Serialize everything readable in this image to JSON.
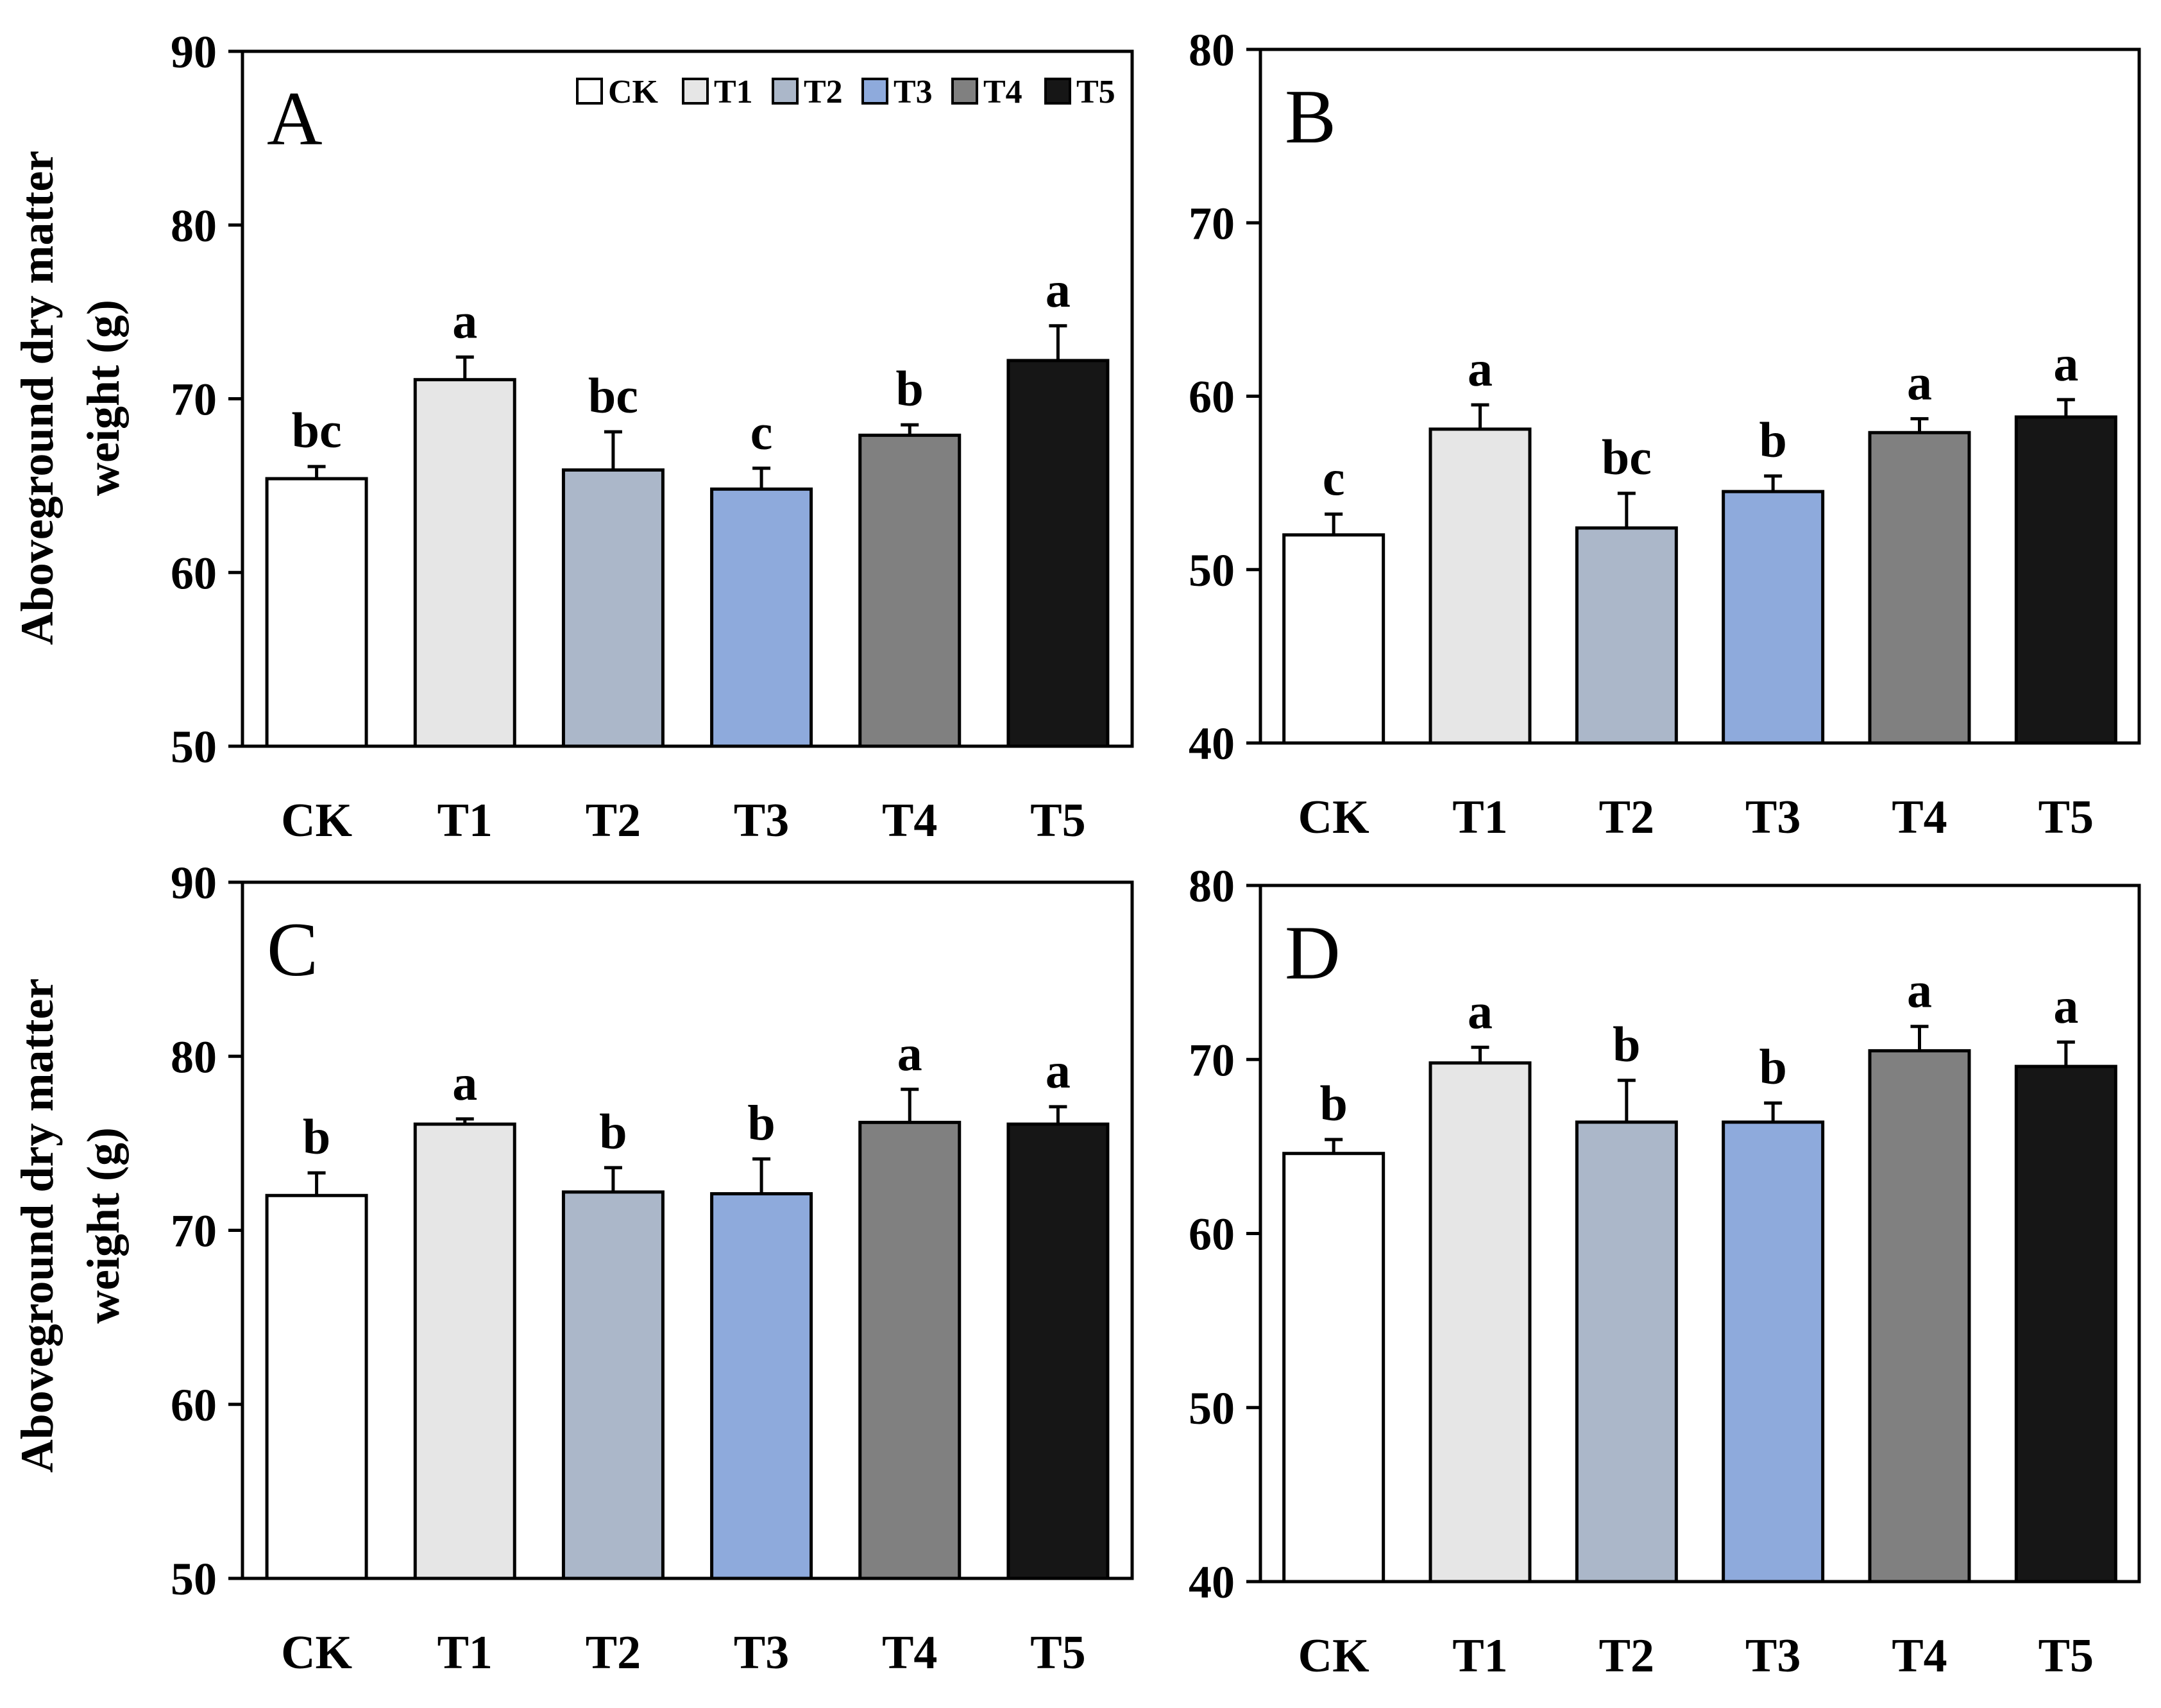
{
  "figure": {
    "ylabel_line1": "Aboveground dry matter",
    "ylabel_line2": "weight (g)"
  },
  "legend": {
    "entries": [
      "CK",
      "T1",
      "T2",
      "T3",
      "T4",
      "T5"
    ],
    "colors": [
      "#ffffff",
      "#e6e6e6",
      "#abb7c9",
      "#8eaadc",
      "#808080",
      "#161616"
    ]
  },
  "chart_data": [
    {
      "type": "bar",
      "panel": "A",
      "categories": [
        "CK",
        "T1",
        "T2",
        "T3",
        "T4",
        "T5"
      ],
      "values": [
        65.4,
        71.1,
        65.9,
        64.8,
        67.9,
        72.2
      ],
      "errors": [
        0.7,
        1.3,
        2.2,
        1.2,
        0.6,
        2.0
      ],
      "significance": [
        "bc",
        "a",
        "bc",
        "c",
        "b",
        "a"
      ],
      "ylim": [
        50,
        90
      ],
      "yticks": [
        50,
        60,
        70,
        80,
        90
      ],
      "ylabel": "Aboveground dry matter weight (g)",
      "legend": true
    },
    {
      "type": "bar",
      "panel": "B",
      "categories": [
        "CK",
        "T1",
        "T2",
        "T3",
        "T4",
        "T5"
      ],
      "values": [
        52.0,
        58.1,
        52.4,
        54.5,
        57.9,
        58.8
      ],
      "errors": [
        1.2,
        1.4,
        2.0,
        0.9,
        0.8,
        1.0
      ],
      "significance": [
        "c",
        "a",
        "bc",
        "b",
        "a",
        "a"
      ],
      "ylim": [
        40,
        80
      ],
      "yticks": [
        40,
        50,
        60,
        70,
        80
      ],
      "ylabel": "",
      "legend": false
    },
    {
      "type": "bar",
      "panel": "C",
      "categories": [
        "CK",
        "T1",
        "T2",
        "T3",
        "T4",
        "T5"
      ],
      "values": [
        72.0,
        76.1,
        72.2,
        72.1,
        76.2,
        76.1
      ],
      "errors": [
        1.3,
        0.3,
        1.4,
        2.0,
        1.9,
        1.0
      ],
      "significance": [
        "b",
        "a",
        "b",
        "b",
        "a",
        "a"
      ],
      "ylim": [
        50,
        90
      ],
      "yticks": [
        50,
        60,
        70,
        80,
        90
      ],
      "ylabel": "Aboveground dry matter weight (g)",
      "legend": false
    },
    {
      "type": "bar",
      "panel": "D",
      "categories": [
        "CK",
        "T1",
        "T2",
        "T3",
        "T4",
        "T5"
      ],
      "values": [
        64.6,
        69.8,
        66.4,
        66.4,
        70.5,
        69.6
      ],
      "errors": [
        0.8,
        0.9,
        2.4,
        1.1,
        1.4,
        1.4
      ],
      "significance": [
        "b",
        "a",
        "b",
        "b",
        "a",
        "a"
      ],
      "ylim": [
        40,
        80
      ],
      "yticks": [
        40,
        50,
        60,
        70,
        80
      ],
      "ylabel": "",
      "legend": false
    }
  ]
}
